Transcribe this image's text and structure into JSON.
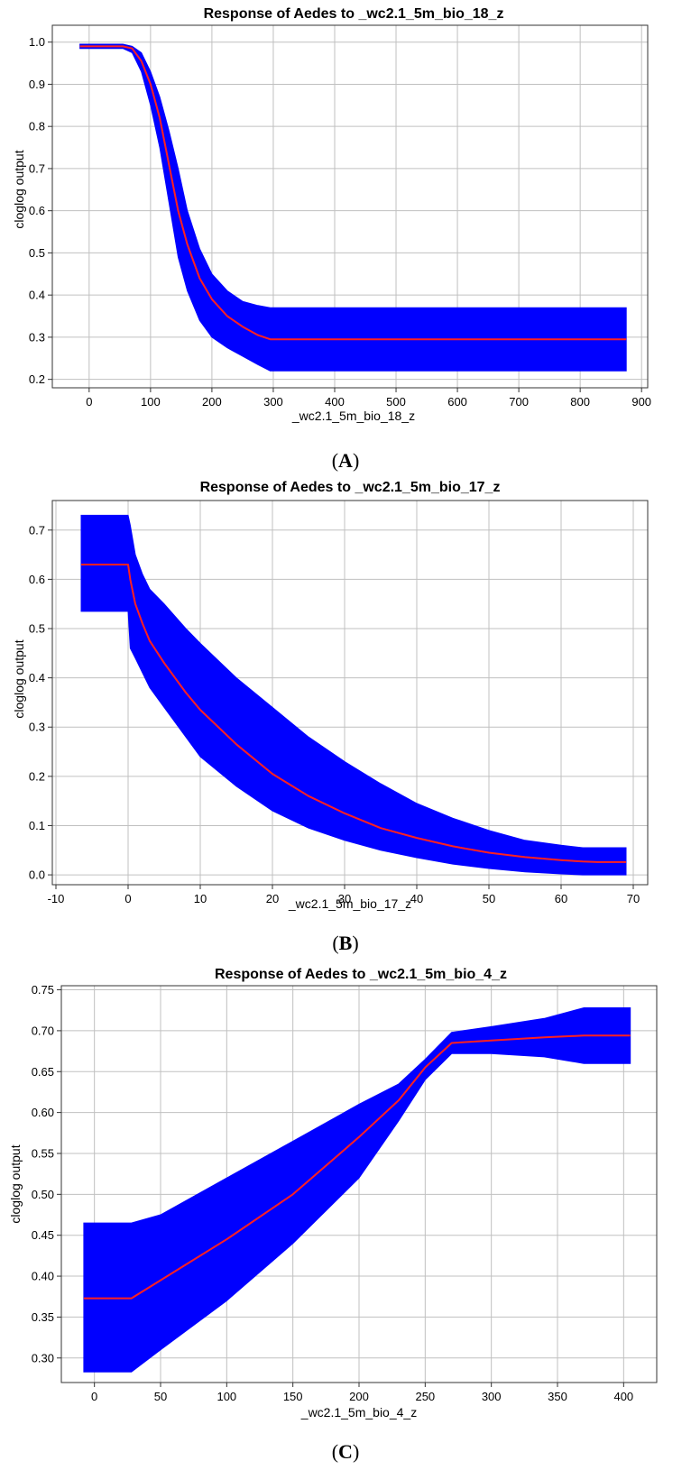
{
  "colors": {
    "band": "#0000ff",
    "line": "#ff2020",
    "grid": "#c0c0c0",
    "frame": "#333333"
  },
  "chart_data": [
    {
      "type": "line",
      "panel_label": "A",
      "title": "Response of Aedes to _wc2.1_5m_bio_18_z",
      "xlabel": "_wc2.1_5m_bio_18_z",
      "ylabel": "cloglog output",
      "xlim": [
        -60,
        910
      ],
      "ylim": [
        0.18,
        1.04
      ],
      "xticks": [
        0,
        100,
        200,
        300,
        400,
        500,
        600,
        700,
        800,
        900
      ],
      "yticks": [
        0.2,
        0.3,
        0.4,
        0.5,
        0.6,
        0.7,
        0.8,
        0.9,
        1.0
      ],
      "ytick_labels": [
        "0.2",
        "0.3",
        "0.4",
        "0.5",
        "0.6",
        "0.7",
        "0.8",
        "0.9",
        "1.0"
      ],
      "grid": true,
      "series": [
        {
          "x": [
            -15,
            20,
            55,
            70,
            85,
            100,
            115,
            130,
            145,
            160,
            180,
            200,
            225,
            250,
            275,
            295,
            400,
            500,
            600,
            700,
            800,
            875
          ],
          "y": [
            0.99,
            0.99,
            0.99,
            0.985,
            0.955,
            0.9,
            0.82,
            0.71,
            0.6,
            0.52,
            0.44,
            0.39,
            0.35,
            0.325,
            0.305,
            0.295,
            0.295,
            0.295,
            0.295,
            0.295,
            0.295,
            0.295
          ],
          "upper": [
            0.995,
            0.995,
            0.995,
            0.99,
            0.975,
            0.93,
            0.87,
            0.79,
            0.7,
            0.6,
            0.51,
            0.45,
            0.41,
            0.385,
            0.375,
            0.37,
            0.37,
            0.37,
            0.37,
            0.37,
            0.37,
            0.37
          ],
          "lower": [
            0.985,
            0.985,
            0.985,
            0.975,
            0.93,
            0.85,
            0.75,
            0.62,
            0.49,
            0.41,
            0.34,
            0.3,
            0.275,
            0.255,
            0.235,
            0.22,
            0.22,
            0.22,
            0.22,
            0.22,
            0.22,
            0.22
          ]
        }
      ]
    },
    {
      "type": "line",
      "panel_label": "B",
      "title": "Response of Aedes to _wc2.1_5m_bio_17_z",
      "xlabel": "_wc2.1_5m_bio_17_z",
      "ylabel": "cloglog output",
      "xlim": [
        -10.5,
        72
      ],
      "ylim": [
        -0.02,
        0.76
      ],
      "xticks": [
        -10,
        0,
        10,
        20,
        30,
        40,
        50,
        60,
        70
      ],
      "yticks": [
        0.0,
        0.1,
        0.2,
        0.3,
        0.4,
        0.5,
        0.6,
        0.7
      ],
      "ytick_labels": [
        "0.0",
        "0.1",
        "0.2",
        "0.3",
        "0.4",
        "0.5",
        "0.6",
        "0.7"
      ],
      "grid": true,
      "series": [
        {
          "x": [
            -6.5,
            0,
            0.3,
            1,
            2,
            3,
            5,
            8,
            10,
            15,
            20,
            25,
            30,
            35,
            40,
            45,
            50,
            55,
            60,
            63,
            65,
            69
          ],
          "y": [
            0.63,
            0.63,
            0.6,
            0.55,
            0.51,
            0.475,
            0.43,
            0.37,
            0.335,
            0.265,
            0.205,
            0.16,
            0.125,
            0.095,
            0.075,
            0.058,
            0.045,
            0.036,
            0.03,
            0.027,
            0.026,
            0.026
          ],
          "upper": [
            0.73,
            0.73,
            0.71,
            0.65,
            0.61,
            0.58,
            0.55,
            0.5,
            0.47,
            0.4,
            0.34,
            0.28,
            0.23,
            0.185,
            0.145,
            0.115,
            0.09,
            0.07,
            0.06,
            0.055,
            0.055,
            0.055
          ],
          "lower": [
            0.535,
            0.535,
            0.46,
            0.44,
            0.41,
            0.38,
            0.34,
            0.28,
            0.24,
            0.18,
            0.13,
            0.095,
            0.07,
            0.05,
            0.035,
            0.022,
            0.013,
            0.006,
            0.002,
            0.0,
            0.0,
            0.0
          ]
        }
      ]
    },
    {
      "type": "line",
      "panel_label": "C",
      "title": "Response of Aedes to _wc2.1_5m_bio_4_z",
      "xlabel": "_wc2.1_5m_bio_4_z",
      "ylabel": "cloglog output",
      "xlim": [
        -25,
        425
      ],
      "ylim": [
        0.27,
        0.755
      ],
      "xticks": [
        0,
        50,
        100,
        150,
        200,
        250,
        300,
        350,
        400
      ],
      "yticks": [
        0.3,
        0.35,
        0.4,
        0.45,
        0.5,
        0.55,
        0.6,
        0.65,
        0.7,
        0.75
      ],
      "ytick_labels": [
        "0.30",
        "0.35",
        "0.40",
        "0.45",
        "0.50",
        "0.55",
        "0.60",
        "0.65",
        "0.70",
        "0.75"
      ],
      "grid": true,
      "series": [
        {
          "x": [
            -8,
            28,
            50,
            100,
            150,
            200,
            230,
            250,
            270,
            300,
            340,
            370,
            405
          ],
          "y": [
            0.373,
            0.373,
            0.395,
            0.445,
            0.5,
            0.57,
            0.615,
            0.655,
            0.685,
            0.688,
            0.692,
            0.694,
            0.694
          ],
          "upper": [
            0.465,
            0.465,
            0.475,
            0.52,
            0.565,
            0.61,
            0.635,
            0.665,
            0.698,
            0.705,
            0.715,
            0.728,
            0.728
          ],
          "lower": [
            0.283,
            0.283,
            0.31,
            0.37,
            0.44,
            0.52,
            0.59,
            0.64,
            0.672,
            0.672,
            0.668,
            0.66,
            0.66
          ]
        }
      ]
    }
  ]
}
